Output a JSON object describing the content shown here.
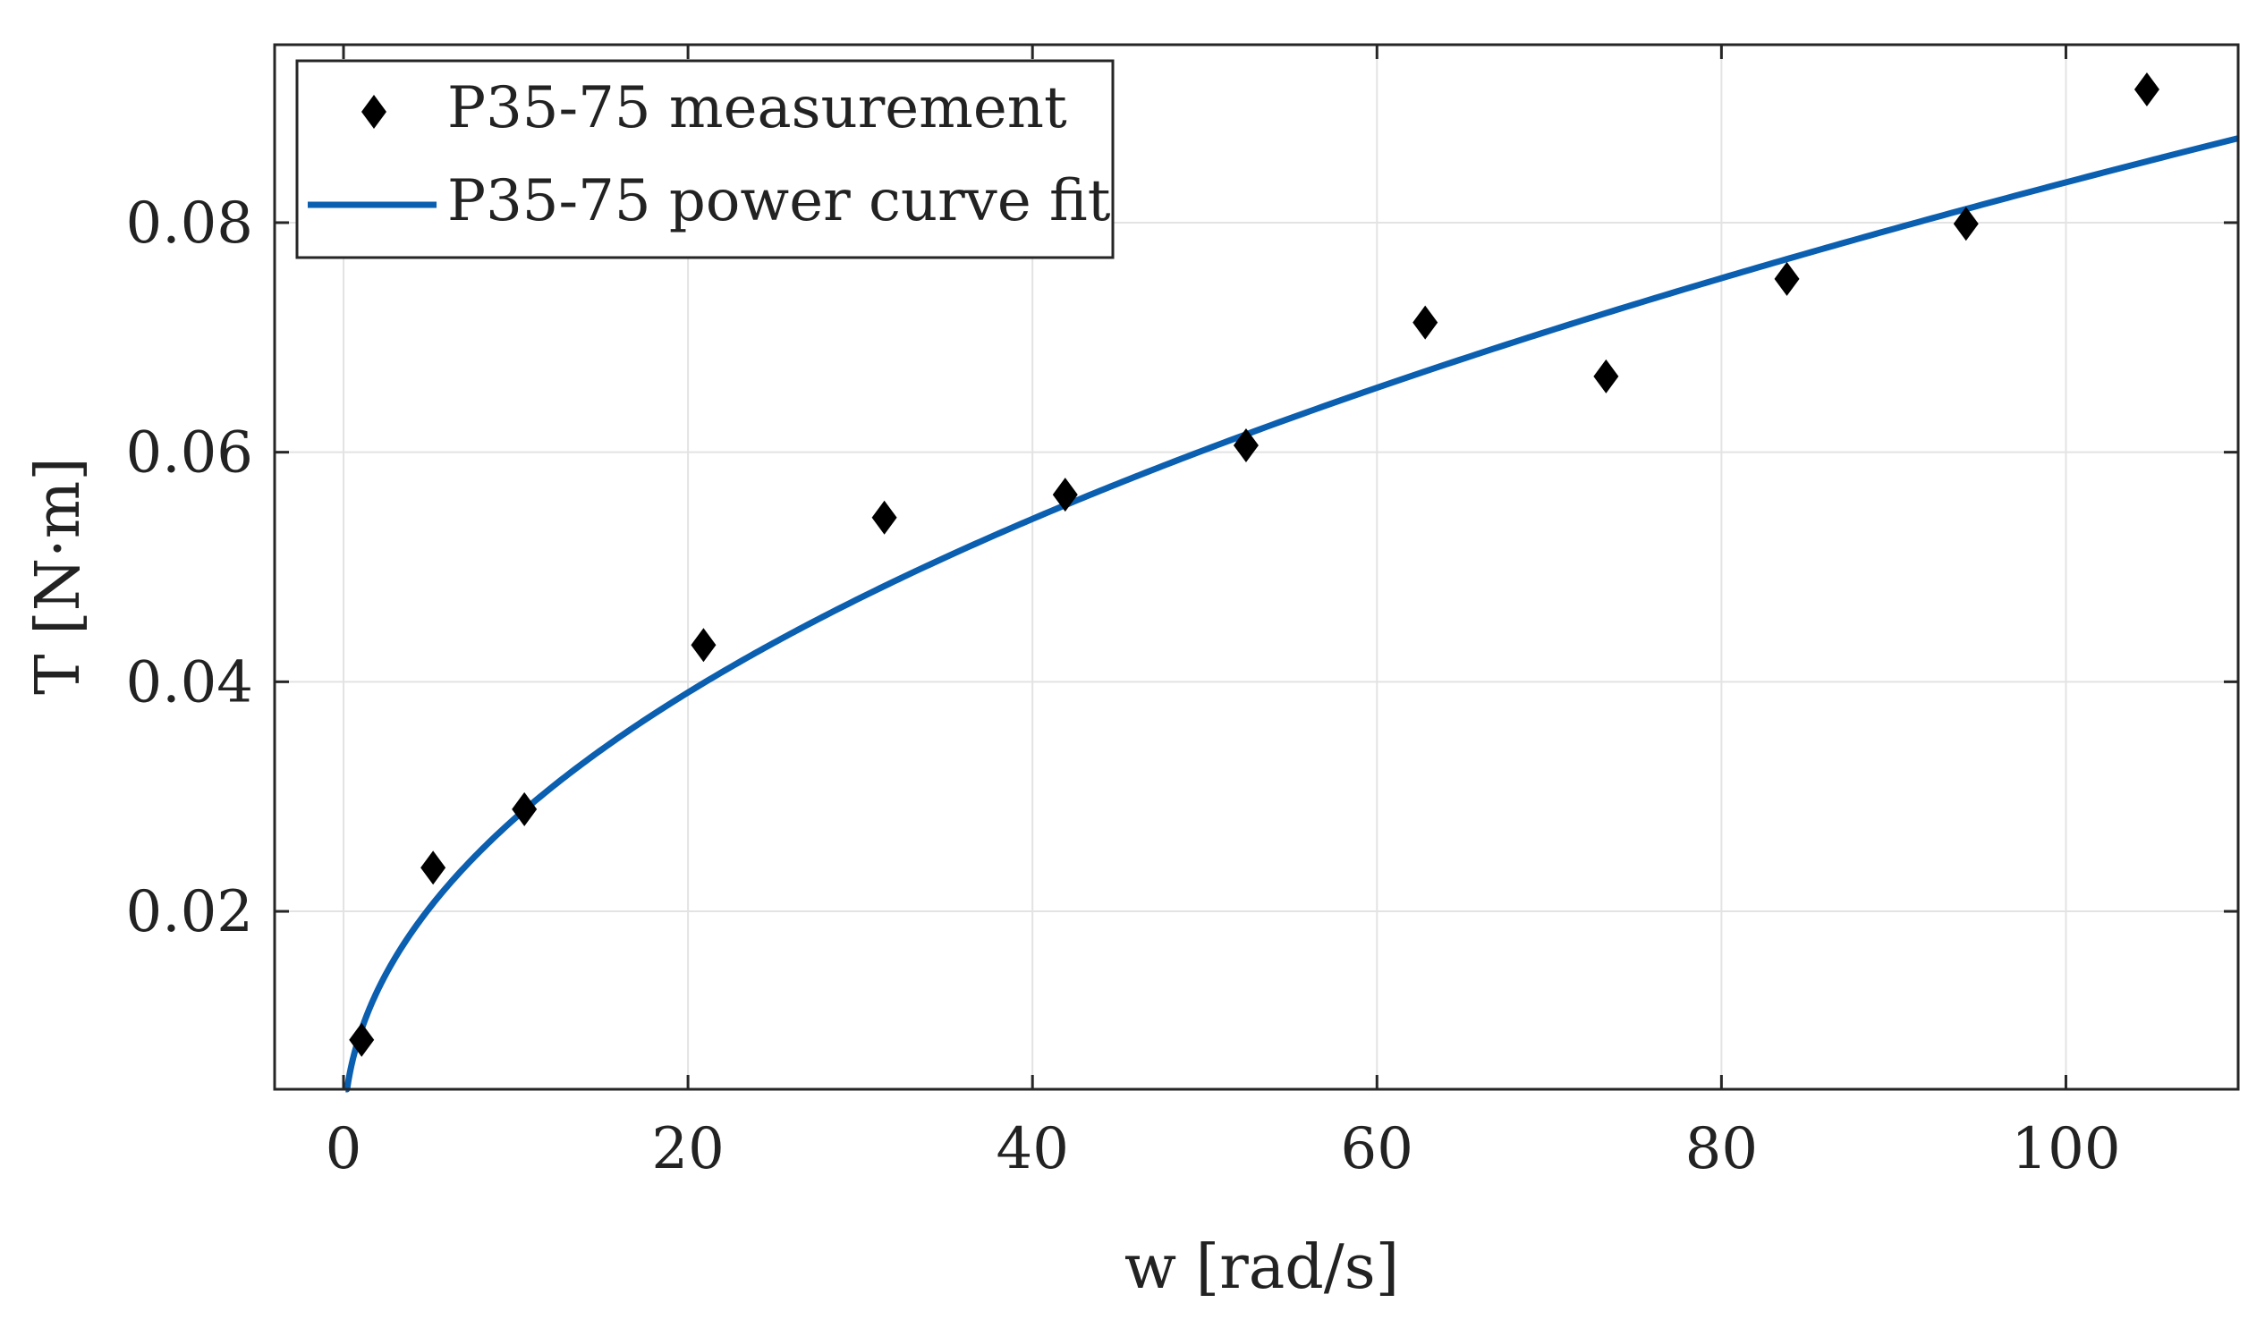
{
  "chart_data": {
    "type": "scatter",
    "title": "",
    "xlabel": "w [rad/s]",
    "ylabel": "T [N·m]",
    "xlim": [
      -4,
      110
    ],
    "ylim": [
      0.0045,
      0.0955
    ],
    "xticks": [
      0,
      20,
      40,
      60,
      80,
      100
    ],
    "yticks": [
      0.02,
      0.04,
      0.06,
      0.08
    ],
    "xtick_labels": [
      "0",
      "20",
      "40",
      "60",
      "80",
      "100"
    ],
    "ytick_labels": [
      "0.02",
      "0.04",
      "0.06",
      "0.08"
    ],
    "grid": true,
    "legend_position": "top-left",
    "series": [
      {
        "name": "P35-75 measurement",
        "kind": "scatter",
        "marker": "diamond",
        "color": "#000000",
        "x": [
          1.05,
          5.2,
          10.5,
          20.9,
          31.4,
          41.9,
          52.4,
          62.8,
          73.3,
          83.8,
          94.2,
          104.7
        ],
        "y": [
          0.0088,
          0.0238,
          0.0289,
          0.0432,
          0.0543,
          0.0563,
          0.0606,
          0.0713,
          0.0666,
          0.0751,
          0.0799,
          0.0916
        ]
      },
      {
        "name": "P35-75 power curve fit",
        "kind": "line",
        "color": "#0b5fb0",
        "model": "y = a * x^b",
        "a": 0.0095,
        "b": 0.472,
        "x_range": [
          0.12,
          110
        ]
      }
    ]
  }
}
